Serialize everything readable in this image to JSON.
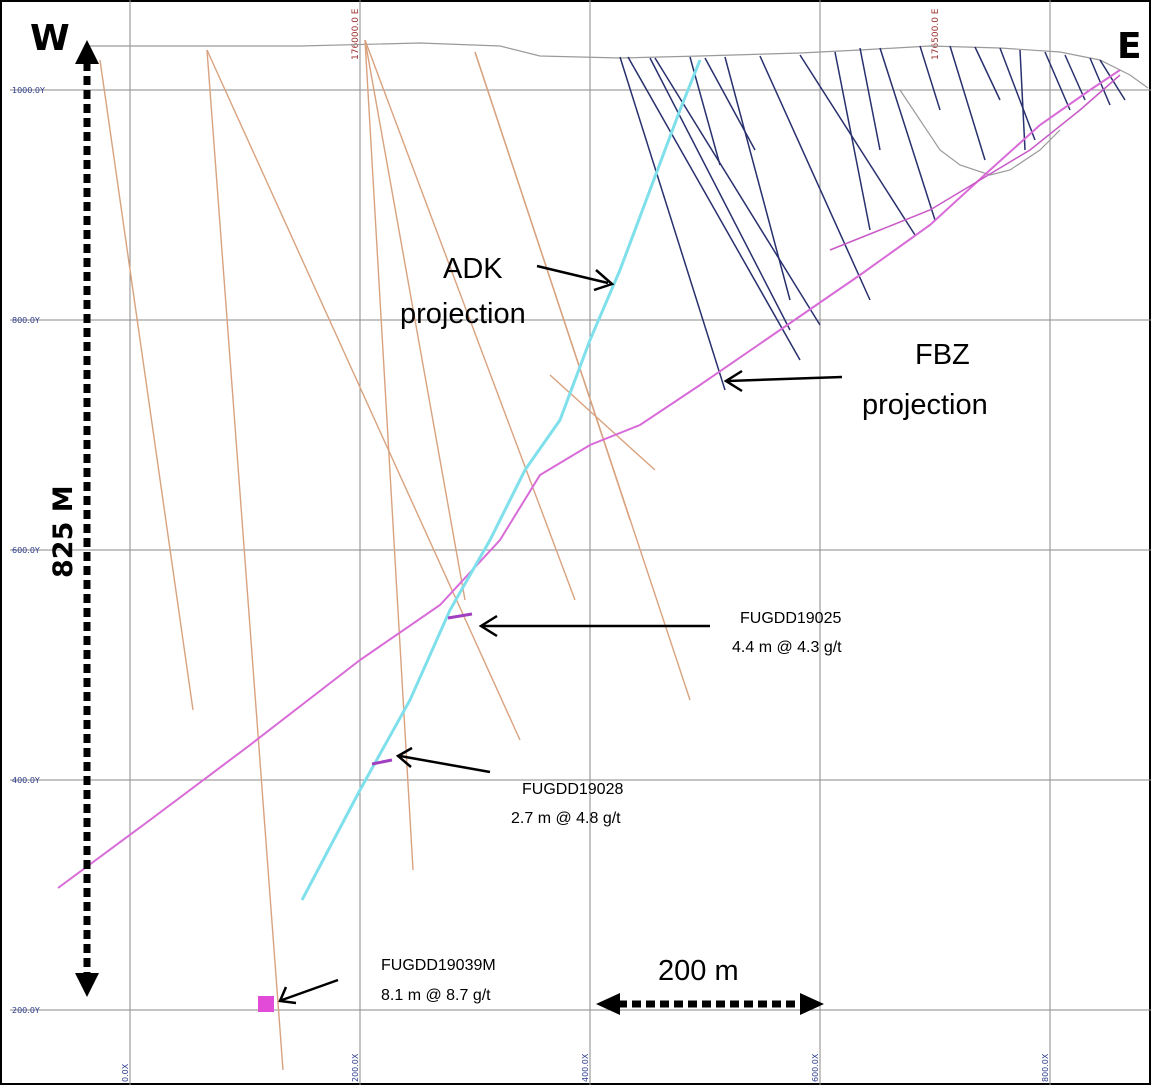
{
  "directions": {
    "west": "W",
    "east": "E"
  },
  "y_axis_labels": [
    "1000.0Y",
    "800.0Y",
    "600.0Y",
    "400.0Y",
    "200.0Y"
  ],
  "x_axis_labels": [
    "0.0X",
    "200.0X",
    "400.0X",
    "600.0X",
    "800.0X"
  ],
  "easting_labels": [
    "176000.0 E",
    "176500.0 E"
  ],
  "projections": {
    "adk": {
      "line1": "ADK",
      "line2": "projection"
    },
    "fbz": {
      "line1": "FBZ",
      "line2": "projection"
    }
  },
  "intercepts": [
    {
      "hole": "FUGDD19025",
      "grade": "4.4 m @ 4.3 g/t"
    },
    {
      "hole": "FUGDD19028",
      "grade": "2.7 m @ 4.8 g/t"
    },
    {
      "hole": "FUGDD19039M",
      "grade": "8.1 m @ 8.7 g/t"
    }
  ],
  "scales": {
    "horizontal": "200 m",
    "vertical": "825 M"
  },
  "colors": {
    "adk_trace": "#7fe0ec",
    "fbz_trace": "#d86bd8",
    "west_holes": "#d9a27e",
    "east_holes": "#28306e",
    "grid": "#8a8a8a"
  }
}
